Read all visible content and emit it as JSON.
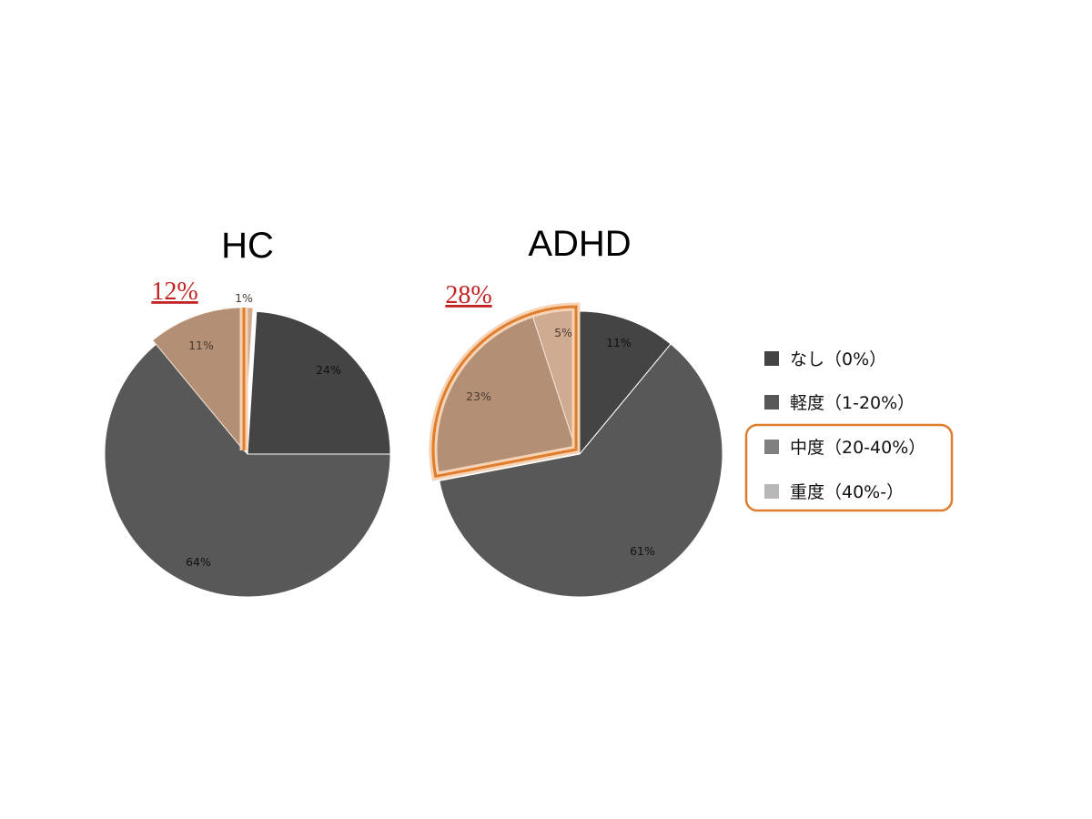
{
  "colors": {
    "none": "#444444",
    "mild": "#585858",
    "moderate": "#808080",
    "severe": "#b8b8b8",
    "highlight_stroke": "#e07d2c",
    "highlight_fill": "#e6a06a",
    "highlight_label": "#c22222"
  },
  "chart_data": [
    {
      "type": "pie",
      "title": "HC",
      "highlight_label": "12%",
      "slices": [
        {
          "key": "severe",
          "value": 1,
          "label": "1%"
        },
        {
          "key": "none",
          "value": 24,
          "label": "24%"
        },
        {
          "key": "mild",
          "value": 64,
          "label": "64%"
        },
        {
          "key": "moderate",
          "value": 11,
          "label": "11%"
        }
      ]
    },
    {
      "type": "pie",
      "title": "ADHD",
      "highlight_label": "28%",
      "slices": [
        {
          "key": "none",
          "value": 11,
          "label": "11%"
        },
        {
          "key": "mild",
          "value": 61,
          "label": "61%"
        },
        {
          "key": "moderate",
          "value": 23,
          "label": "23%"
        },
        {
          "key": "severe",
          "value": 5,
          "label": "5%"
        }
      ]
    }
  ],
  "legend": {
    "items": [
      {
        "key": "none",
        "label": "なし（0%）"
      },
      {
        "key": "mild",
        "label": "軽度（1-20%）"
      },
      {
        "key": "moderate",
        "label": "中度（20-40%）"
      },
      {
        "key": "severe",
        "label": "重度（40%-）"
      }
    ]
  }
}
